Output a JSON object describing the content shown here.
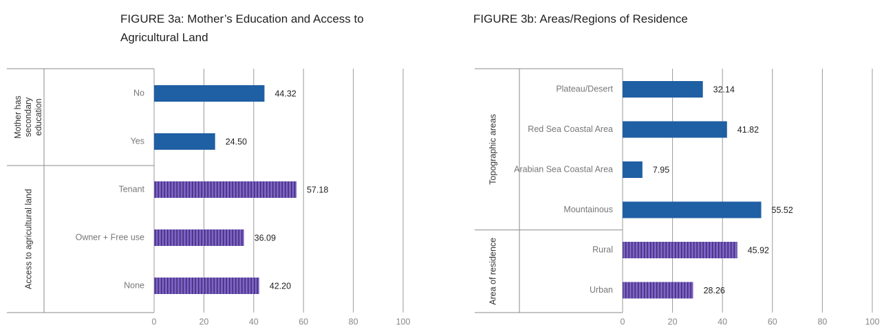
{
  "chart_data": [
    {
      "type": "bar",
      "orientation": "horizontal",
      "title": "FIGURE 3a: Mother’s Education and Access to Agricultural Land",
      "groups": [
        {
          "name": "Mother has secondary education",
          "pattern": "solid",
          "color": "#1f5fa3",
          "categories": [
            "No",
            "Yes"
          ],
          "values": [
            44.32,
            24.5
          ],
          "value_labels": [
            "44.32",
            "24.50"
          ]
        },
        {
          "name": "Access to agricultural land",
          "pattern": "vertical-stripes",
          "color": "#7d62c7",
          "categories": [
            "Tenant",
            "Owner + Free use",
            "None"
          ],
          "values": [
            57.18,
            36.09,
            42.2
          ],
          "value_labels": [
            "57.18",
            "36.09",
            "42.20"
          ]
        }
      ],
      "xlim": [
        0,
        100
      ],
      "xticks": [
        0,
        20,
        40,
        60,
        80,
        100
      ],
      "grid": true
    },
    {
      "type": "bar",
      "orientation": "horizontal",
      "title": "FIGURE 3b: Areas/Regions of Residence",
      "groups": [
        {
          "name": "Topographic areas",
          "pattern": "solid",
          "color": "#1f5fa3",
          "categories": [
            "Plateau/Desert",
            "Red Sea Coastal Area",
            "Arabian Sea Coastal Area",
            "Mountainous"
          ],
          "values": [
            32.14,
            41.82,
            7.95,
            55.52
          ],
          "value_labels": [
            "32.14",
            "41.82",
            "7.95",
            "55.52"
          ]
        },
        {
          "name": "Area of residence",
          "pattern": "vertical-stripes",
          "color": "#7d62c7",
          "categories": [
            "Rural",
            "Urban"
          ],
          "values": [
            45.92,
            28.26
          ],
          "value_labels": [
            "45.92",
            "28.26"
          ]
        }
      ],
      "xlim": [
        0,
        100
      ],
      "xticks": [
        0,
        20,
        40,
        60,
        80,
        100
      ],
      "grid": true
    }
  ]
}
